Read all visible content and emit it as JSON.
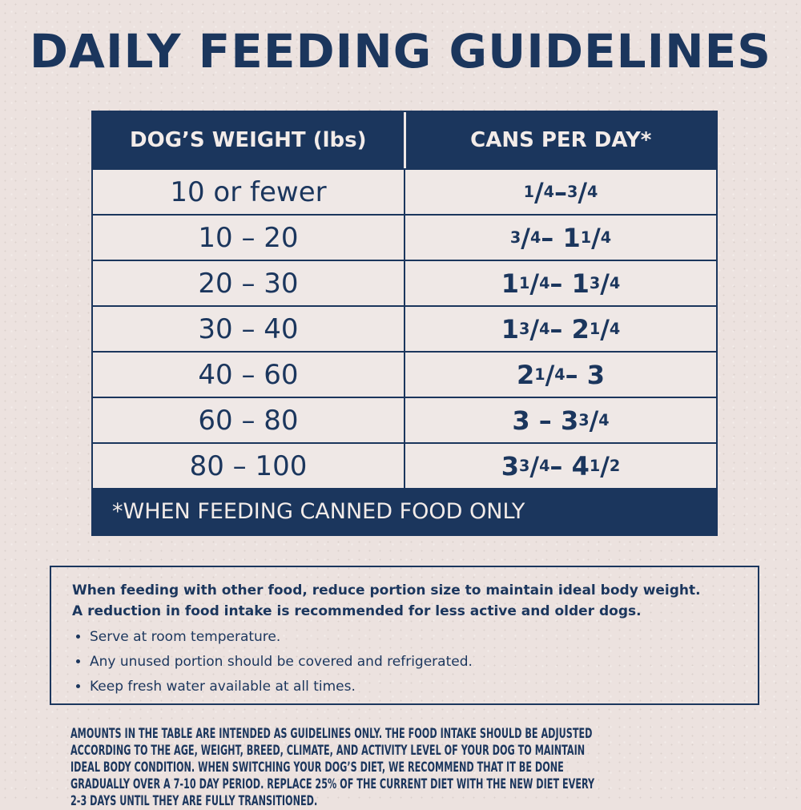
{
  "title": "DAILY FEEDING GUIDELINES",
  "colors": {
    "navy": "#1b365d",
    "background": "#ece2df",
    "header_text": "#f3ece9"
  },
  "table": {
    "headers": [
      "DOG’S WEIGHT (lbs)",
      "CANS PER DAY*"
    ],
    "rows": [
      [
        "10 or fewer",
        "1/4 – 3/4"
      ],
      [
        "10 – 20",
        "3/4 – 1 1/4"
      ],
      [
        "20 – 30",
        "1 1/4 – 1 3/4"
      ],
      [
        "30 – 40",
        "1 3/4 – 2 1/4"
      ],
      [
        "40 – 60",
        "2 1/4 – 3"
      ],
      [
        "60 – 80",
        "3 – 3 3/4"
      ],
      [
        "80 – 100",
        "3 3/4 – 4 1/2"
      ]
    ],
    "footnote": "*WHEN FEEDING CANNED FOOD ONLY"
  },
  "notes": {
    "lead": [
      "When feeding with other food, reduce portion size to maintain ideal body weight.",
      "A reduction in food intake is recommended for less active and older dogs."
    ],
    "bullets": [
      "Serve at room temperature.",
      "Any unused portion should be covered and refrigerated.",
      "Keep fresh water available at all times."
    ]
  },
  "fine_print": "Amounts in the table are intended as guidelines only. The food intake should be adjusted according to the age, weight, breed, climate, and activity level of your dog to maintain ideal body condition. When switching your dog’s diet, we recommend that it be done gradually over a 7-10 day period. Replace 25% of the current diet with the new diet every 2-3 days until they are fully transitioned."
}
